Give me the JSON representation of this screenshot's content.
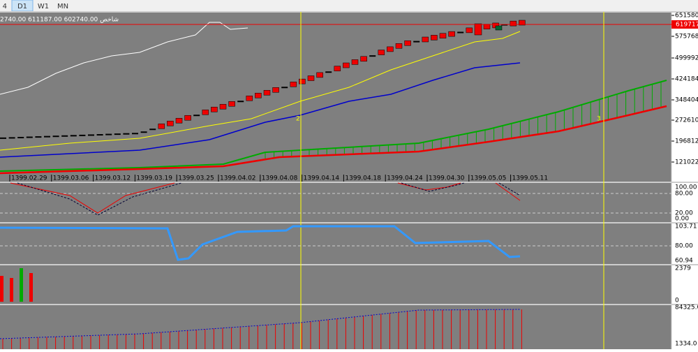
{
  "toolbar": {
    "tabs": [
      "4",
      "D1",
      "W1",
      "MN"
    ]
  },
  "chart": {
    "info": "2740.00 611187.00 602740.00 شاخص",
    "current_price": "619717",
    "price_axis": [
      "651580.",
      "575768.",
      "499992.",
      "424184.",
      "348404.",
      "272610.",
      "196812.",
      "121022."
    ],
    "dates": [
      "1399.02.29",
      "1399.03.06",
      "1399.03.12",
      "1399.03.19",
      "1399.03.25",
      "1399.04.02",
      "1399.04.08",
      "1399.04.14",
      "1399.04.18",
      "1399.04.24",
      "1399.04.30",
      "1399.05.05",
      "1399.05.11"
    ],
    "markers": [
      "2",
      "3"
    ]
  },
  "panels": [
    {
      "axis": [
        "100.00",
        "80.00",
        "20.00",
        "0.00"
      ]
    },
    {
      "axis": [
        "103.71",
        "80.00",
        "60.94"
      ]
    },
    {
      "axis": [
        "2379",
        "0"
      ]
    },
    {
      "axis": [
        "84325.0",
        "1334.0"
      ]
    }
  ]
}
